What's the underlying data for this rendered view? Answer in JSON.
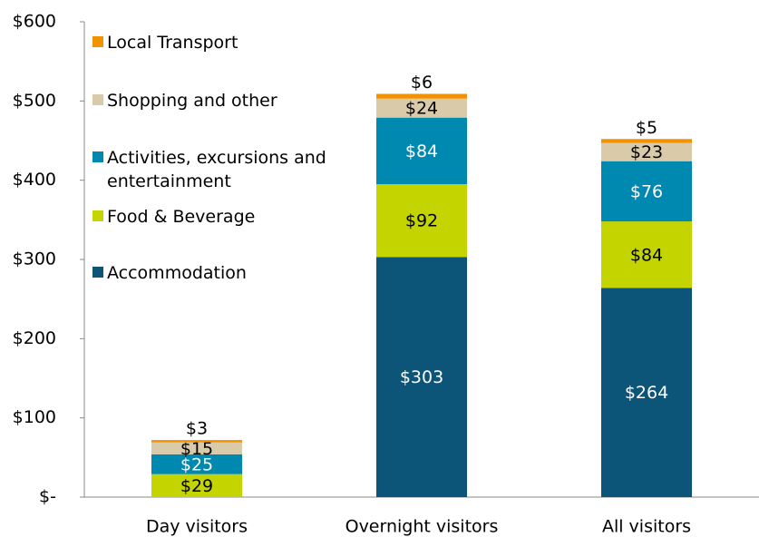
{
  "chart_data": {
    "type": "bar",
    "stacked": true,
    "categories": [
      "Day visitors",
      "Overnight visitors",
      "All visitors"
    ],
    "series": [
      {
        "name": "Accommodation",
        "color": "#0d5479",
        "values": [
          null,
          303,
          264
        ],
        "value_labels": [
          null,
          "$303",
          "$264"
        ]
      },
      {
        "name": "Food & Beverage",
        "color": "#c3d400",
        "values": [
          29,
          92,
          84
        ],
        "value_labels": [
          "$29",
          "$92",
          "$84"
        ]
      },
      {
        "name": "Activities, excursions and entertainment",
        "color": "#0089b0",
        "values": [
          25,
          84,
          76
        ],
        "value_labels": [
          "$25",
          "$84",
          "$76"
        ]
      },
      {
        "name": "Shopping and other",
        "color": "#d9cba9",
        "values": [
          15,
          24,
          23
        ],
        "value_labels": [
          "$15",
          "$24",
          "$23"
        ]
      },
      {
        "name": "Local Transport",
        "color": "#f39200",
        "values": [
          3,
          6,
          5
        ],
        "value_labels": [
          "$3",
          "$6",
          "$5"
        ]
      }
    ],
    "ylim": [
      0,
      600
    ],
    "yticks": [
      {
        "value": 0,
        "label": "$-"
      },
      {
        "value": 100,
        "label": "$100"
      },
      {
        "value": 200,
        "label": "$200"
      },
      {
        "value": 300,
        "label": "$300"
      },
      {
        "value": 400,
        "label": "$400"
      },
      {
        "value": 500,
        "label": "$500"
      },
      {
        "value": 600,
        "label": "$600"
      }
    ],
    "legend": "upper left"
  }
}
